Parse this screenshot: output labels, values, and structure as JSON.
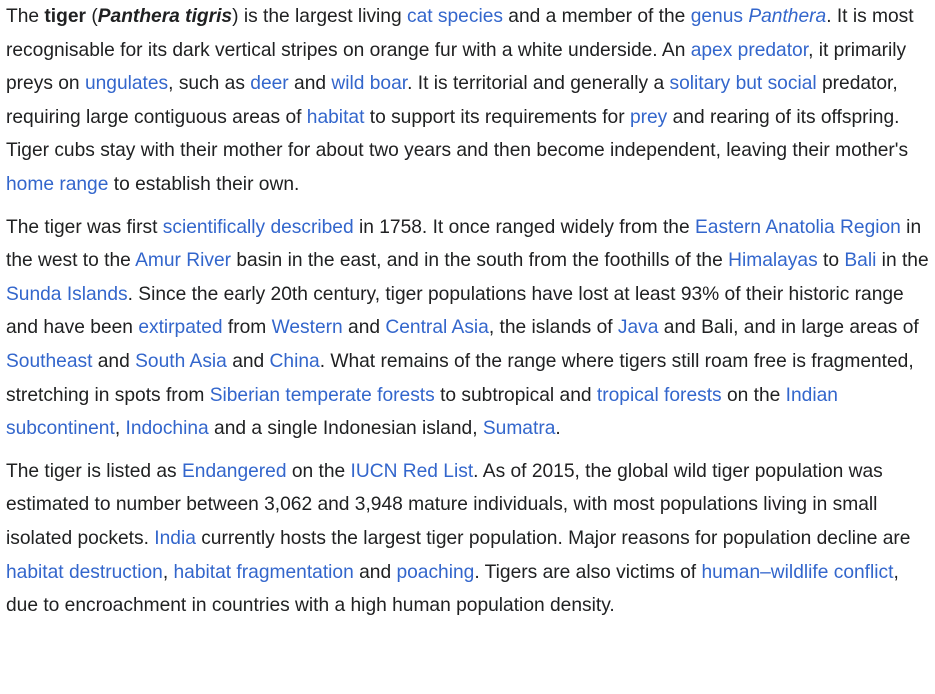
{
  "colors": {
    "text": "#202122",
    "link": "#3366cc",
    "background": "#ffffff"
  },
  "paragraphs": [
    {
      "segments": [
        {
          "t": "The "
        },
        {
          "t": "tiger",
          "b": true
        },
        {
          "t": " ("
        },
        {
          "t": "Panthera tigris",
          "b": true,
          "i": true
        },
        {
          "t": ") is the largest living "
        },
        {
          "t": "cat species",
          "link": true
        },
        {
          "t": " and a member of the "
        },
        {
          "t": "genus",
          "link": true
        },
        {
          "t": " "
        },
        {
          "t": "Panthera",
          "link": true,
          "i": true
        },
        {
          "t": ". It is most recognisable for its dark vertical stripes on orange fur with a white underside. An "
        },
        {
          "t": "apex predator",
          "link": true
        },
        {
          "t": ", it primarily preys on "
        },
        {
          "t": "ungulates",
          "link": true
        },
        {
          "t": ", such as "
        },
        {
          "t": "deer",
          "link": true
        },
        {
          "t": " and "
        },
        {
          "t": "wild boar",
          "link": true
        },
        {
          "t": ". It is territorial and generally a "
        },
        {
          "t": "solitary but social",
          "link": true
        },
        {
          "t": " predator, requiring large contiguous areas of "
        },
        {
          "t": "habitat",
          "link": true
        },
        {
          "t": " to support its requirements for "
        },
        {
          "t": "prey",
          "link": true
        },
        {
          "t": " and rearing of its offspring. Tiger cubs stay with their mother for about two years and then become independent, leaving their mother's "
        },
        {
          "t": "home range",
          "link": true
        },
        {
          "t": " to establish their own."
        }
      ]
    },
    {
      "segments": [
        {
          "t": "The tiger was first "
        },
        {
          "t": "scientifically described",
          "link": true
        },
        {
          "t": " in 1758. It once ranged widely from the "
        },
        {
          "t": "Eastern Anatolia Region",
          "link": true
        },
        {
          "t": " in the west to the "
        },
        {
          "t": "Amur River",
          "link": true
        },
        {
          "t": " basin in the east, and in the south from the foothills of the "
        },
        {
          "t": "Himalayas",
          "link": true
        },
        {
          "t": " to "
        },
        {
          "t": "Bali",
          "link": true
        },
        {
          "t": " in the "
        },
        {
          "t": "Sunda Islands",
          "link": true
        },
        {
          "t": ". Since the early 20th century, tiger populations have lost at least 93% of their historic range and have been "
        },
        {
          "t": "extirpated",
          "link": true
        },
        {
          "t": " from "
        },
        {
          "t": "Western",
          "link": true
        },
        {
          "t": " and "
        },
        {
          "t": "Central Asia",
          "link": true
        },
        {
          "t": ", the islands of "
        },
        {
          "t": "Java",
          "link": true
        },
        {
          "t": " and Bali, and in large areas of "
        },
        {
          "t": "Southeast",
          "link": true
        },
        {
          "t": " and "
        },
        {
          "t": "South Asia",
          "link": true
        },
        {
          "t": " and "
        },
        {
          "t": "China",
          "link": true
        },
        {
          "t": ". What remains of the range where tigers still roam free is fragmented, stretching in spots from "
        },
        {
          "t": "Siberian temperate forests",
          "link": true
        },
        {
          "t": " to subtropical and "
        },
        {
          "t": "tropical forests",
          "link": true
        },
        {
          "t": " on the "
        },
        {
          "t": "Indian subcontinent",
          "link": true
        },
        {
          "t": ", "
        },
        {
          "t": "Indochina",
          "link": true
        },
        {
          "t": " and a single Indonesian island, "
        },
        {
          "t": "Sumatra",
          "link": true
        },
        {
          "t": "."
        }
      ]
    },
    {
      "segments": [
        {
          "t": "The tiger is listed as "
        },
        {
          "t": "Endangered",
          "link": true
        },
        {
          "t": " on the "
        },
        {
          "t": "IUCN Red List",
          "link": true
        },
        {
          "t": ". As of 2015, the global wild tiger population was estimated to number between 3,062 and 3,948 mature individuals, with most populations living in small isolated pockets. "
        },
        {
          "t": "India",
          "link": true
        },
        {
          "t": " currently hosts the largest tiger population. Major reasons for population decline are "
        },
        {
          "t": "habitat destruction",
          "link": true
        },
        {
          "t": ", "
        },
        {
          "t": "habitat fragmentation",
          "link": true
        },
        {
          "t": " and "
        },
        {
          "t": "poaching",
          "link": true
        },
        {
          "t": ". Tigers are also victims of "
        },
        {
          "t": "human–wildlife conflict",
          "link": true
        },
        {
          "t": ", due to encroachment in countries with a high human population density."
        }
      ]
    }
  ]
}
